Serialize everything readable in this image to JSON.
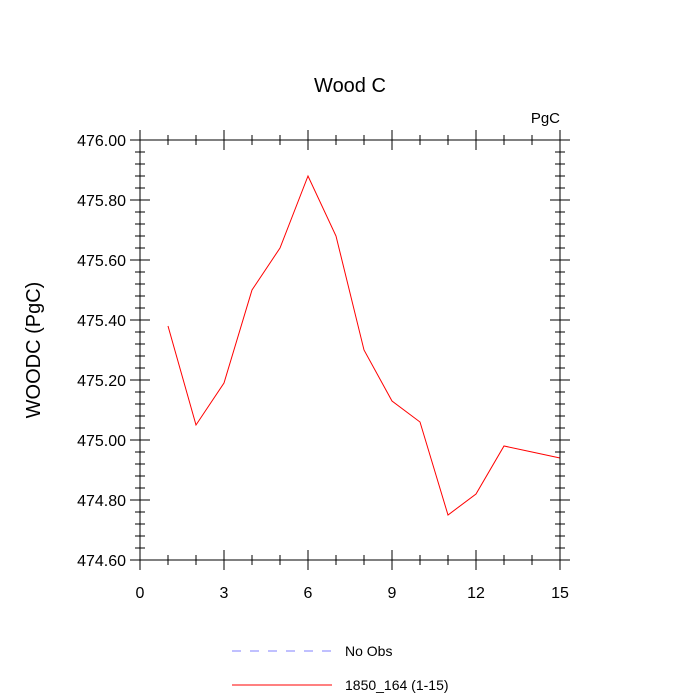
{
  "chart_data": {
    "type": "line",
    "title": "Wood C",
    "units_label": "PgC",
    "xlabel": "",
    "ylabel": "WOODC  (PgC)",
    "xlim": [
      0,
      15
    ],
    "ylim": [
      474.6,
      476.0
    ],
    "xticks": [
      0,
      3,
      6,
      9,
      12,
      15
    ],
    "xtick_labels": [
      "0",
      "3",
      "6",
      "9",
      "12",
      "15"
    ],
    "yticks": [
      474.6,
      474.8,
      475.0,
      475.2,
      475.4,
      475.6,
      475.8,
      476.0
    ],
    "ytick_labels": [
      "474.60",
      "474.80",
      "475.00",
      "475.20",
      "475.40",
      "475.60",
      "475.80",
      "476.00"
    ],
    "grid": false,
    "legend_position": "bottom",
    "series": [
      {
        "name": "No Obs",
        "color": "#8080ff",
        "dash": "dashed",
        "x": [],
        "values": []
      },
      {
        "name": "1850_164 (1-15)",
        "color": "#ff0000",
        "dash": "solid",
        "x": [
          1,
          2,
          3,
          4,
          5,
          6,
          7,
          8,
          9,
          10,
          11,
          12,
          13,
          14,
          15
        ],
        "values": [
          475.38,
          475.05,
          475.19,
          475.5,
          475.64,
          475.88,
          475.68,
          475.3,
          475.13,
          475.06,
          474.75,
          474.82,
          474.98,
          474.96,
          474.94
        ]
      }
    ]
  }
}
